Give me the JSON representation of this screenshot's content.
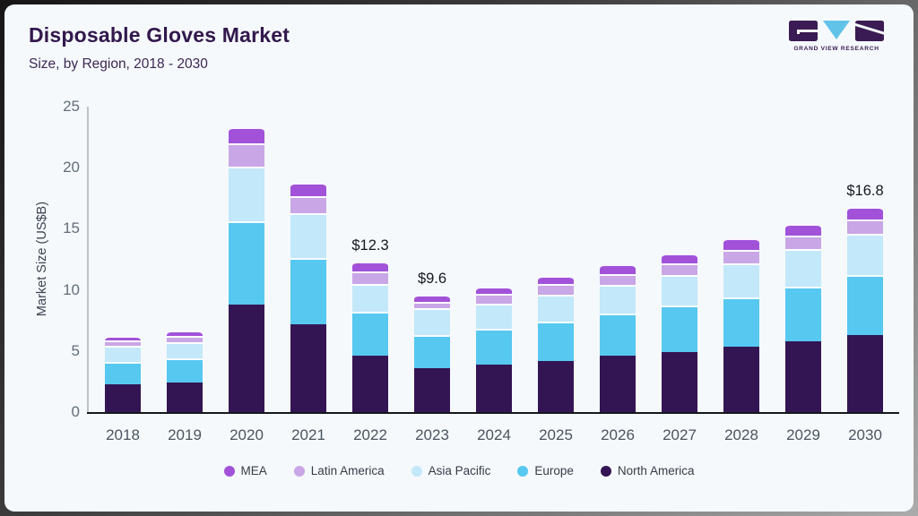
{
  "header": {
    "title": "Disposable Gloves Market",
    "subtitle": "Size, by Region, 2018 - 2030",
    "brand": "GRAND VIEW RESEARCH"
  },
  "colors": {
    "card_background": "#f5f9fc",
    "title_text": "#32184c",
    "axis_line": "#bdc4cb",
    "baseline": "#14181d",
    "logo_purple": "#3a1b53",
    "logo_blue": "#62c3e9"
  },
  "chart_data": {
    "type": "bar",
    "stacked": true,
    "title": "Disposable Gloves Market",
    "subtitle": "Size, by Region, 2018 - 2030",
    "xlabel": "",
    "ylabel": "Market Size (US$B)",
    "ylim": [
      0,
      25
    ],
    "yticks": [
      0,
      5,
      10,
      15,
      20,
      25
    ],
    "grid": false,
    "legend_position": "bottom",
    "categories": [
      "2018",
      "2019",
      "2020",
      "2021",
      "2022",
      "2023",
      "2024",
      "2025",
      "2026",
      "2027",
      "2028",
      "2029",
      "2030"
    ],
    "series": [
      {
        "name": "North America",
        "color": "#341554",
        "values": [
          2.3,
          2.45,
          8.8,
          7.2,
          4.6,
          3.6,
          3.9,
          4.2,
          4.6,
          4.9,
          5.35,
          5.8,
          6.3
        ]
      },
      {
        "name": "Europe",
        "color": "#57c8f0",
        "values": [
          1.8,
          1.95,
          6.8,
          5.4,
          3.6,
          2.7,
          2.9,
          3.2,
          3.5,
          3.8,
          4.0,
          4.45,
          4.9
        ]
      },
      {
        "name": "Asia Pacific",
        "color": "#c3e8f9",
        "values": [
          1.3,
          1.3,
          4.5,
          3.7,
          2.3,
          2.2,
          2.1,
          2.2,
          2.3,
          2.55,
          2.8,
          3.1,
          3.4
        ]
      },
      {
        "name": "Latin America",
        "color": "#c9a6e6",
        "values": [
          0.45,
          0.55,
          1.9,
          1.4,
          1.0,
          0.5,
          0.75,
          0.85,
          0.9,
          0.95,
          1.15,
          1.1,
          1.2
        ]
      },
      {
        "name": "MEA",
        "color": "#a152d9",
        "values": [
          0.35,
          0.45,
          1.3,
          1.1,
          0.8,
          0.6,
          0.65,
          0.7,
          0.8,
          0.8,
          0.9,
          0.95,
          1.0
        ]
      }
    ],
    "totals": [
      6.2,
      6.7,
      23.3,
      18.8,
      12.3,
      9.6,
      10.3,
      11.15,
      12.1,
      13.0,
      14.2,
      15.4,
      16.8
    ],
    "annotations": [
      {
        "category": "2022",
        "text": "$12.3"
      },
      {
        "category": "2023",
        "text": "$9.6"
      },
      {
        "category": "2030",
        "text": "$16.8"
      }
    ],
    "legend": [
      "MEA",
      "Latin America",
      "Asia Pacific",
      "Europe",
      "North America"
    ]
  }
}
